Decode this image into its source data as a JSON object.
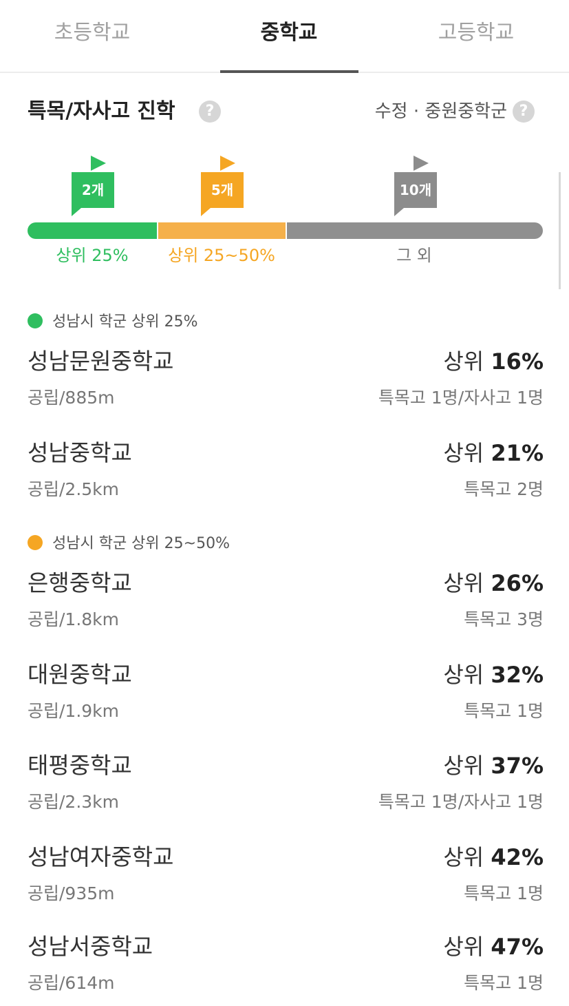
{
  "tabs": [
    {
      "label": "초등학교"
    },
    {
      "label": "중학교"
    },
    {
      "label": "고등학교"
    }
  ],
  "section": {
    "title": "특목/자사고 진학",
    "help_glyph": "?",
    "district": "수정 · 중원중학군"
  },
  "ranges": [
    {
      "flag": "2개",
      "label": "상위 25%",
      "color": "#2fbe5f"
    },
    {
      "flag": "5개",
      "label": "상위 25~50%",
      "color": "#f5a623"
    },
    {
      "flag": "10개",
      "label": "그 외",
      "color": "#8c8c8c"
    }
  ],
  "groups": [
    {
      "title": "성남시 학군 상위 25%",
      "schools": [
        {
          "name": "성남문원중학교",
          "rank_prefix": "상위",
          "rank": "16%",
          "sub": "공립/885m",
          "stat": "특목고 1명/자사고 1명"
        },
        {
          "name": "성남중학교",
          "rank_prefix": "상위",
          "rank": "21%",
          "sub": "공립/2.5km",
          "stat": "특목고 2명"
        }
      ]
    },
    {
      "title": "성남시 학군 상위 25~50%",
      "schools": [
        {
          "name": "은행중학교",
          "rank_prefix": "상위",
          "rank": "26%",
          "sub": "공립/1.8km",
          "stat": "특목고 3명"
        },
        {
          "name": "대원중학교",
          "rank_prefix": "상위",
          "rank": "32%",
          "sub": "공립/1.9km",
          "stat": "특목고 1명"
        },
        {
          "name": "태평중학교",
          "rank_prefix": "상위",
          "rank": "37%",
          "sub": "공립/2.3km",
          "stat": "특목고 1명/자사고 1명"
        },
        {
          "name": "성남여자중학교",
          "rank_prefix": "상위",
          "rank": "42%",
          "sub": "공립/935m",
          "stat": "특목고 1명"
        },
        {
          "name": "성남서중학교",
          "rank_prefix": "상위",
          "rank": "47%",
          "sub": "공립/614m",
          "stat": "특목고 1명"
        }
      ]
    }
  ]
}
